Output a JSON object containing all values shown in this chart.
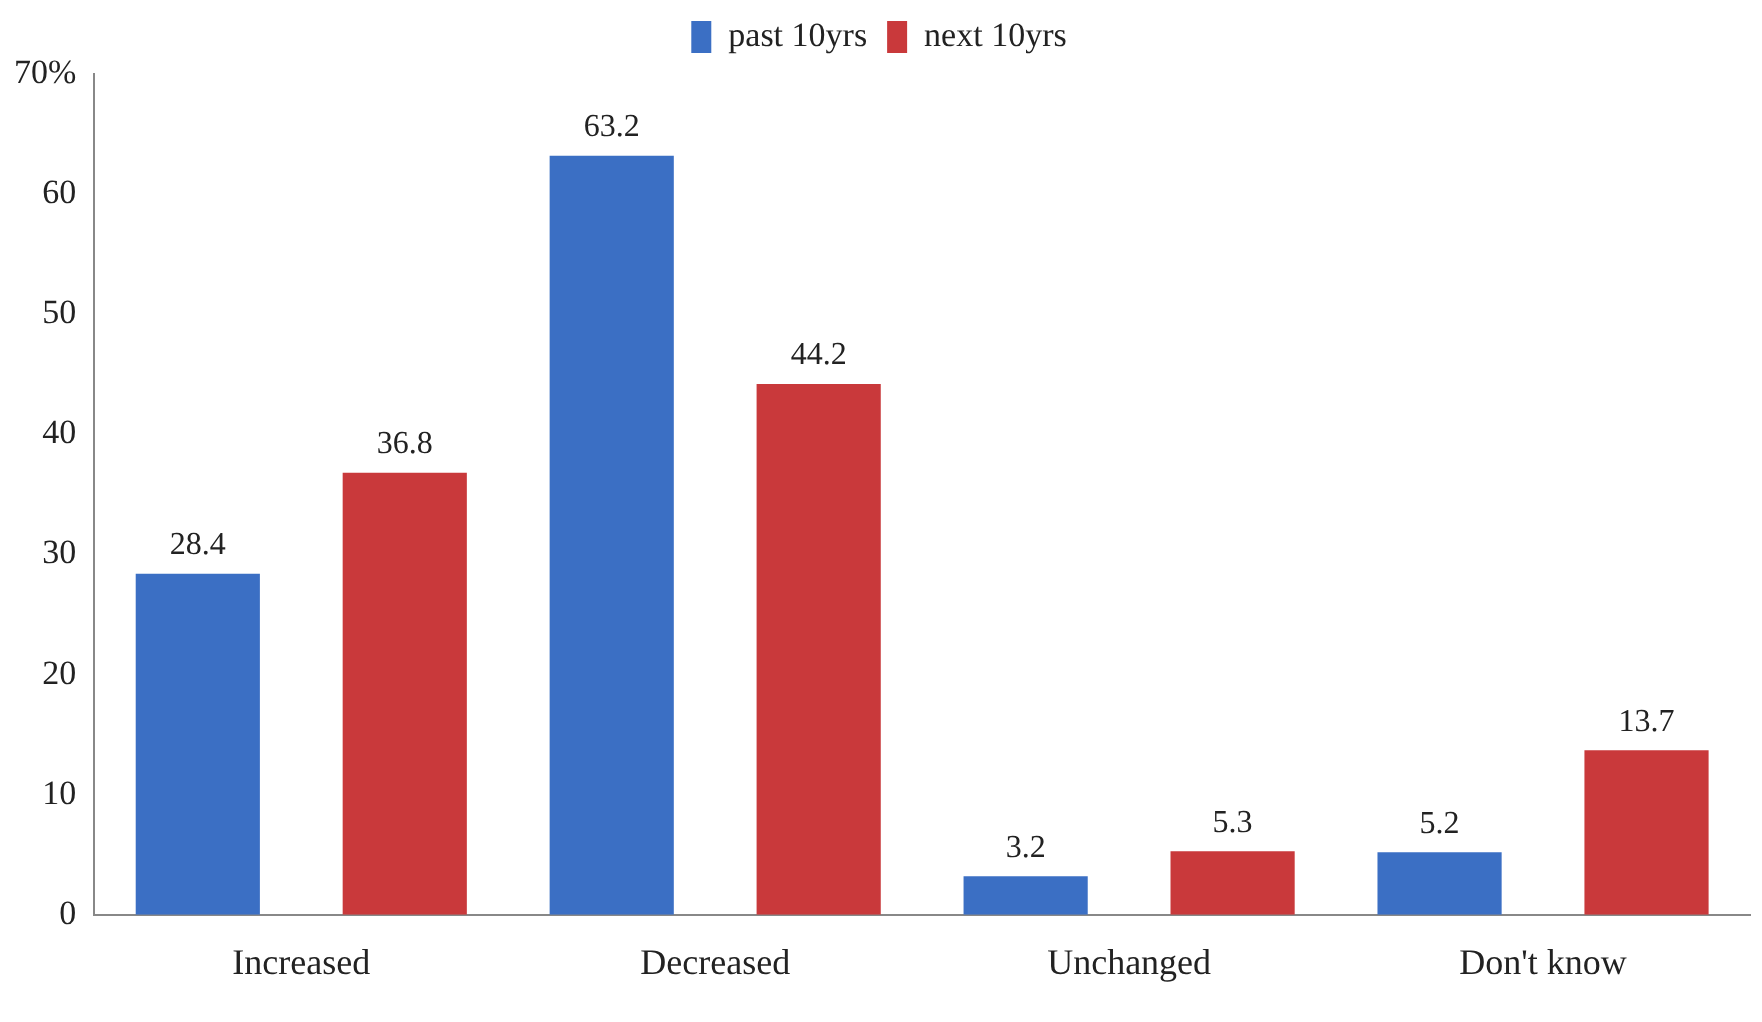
{
  "chart_data": {
    "type": "bar",
    "categories": [
      "Increased",
      "Decreased",
      "Unchanged",
      "Don't know"
    ],
    "series": [
      {
        "name": "past 10yrs",
        "color": "#3b6fc4",
        "values": [
          28.4,
          63.2,
          3.2,
          5.2
        ]
      },
      {
        "name": "next 10yrs",
        "color": "#c9393b",
        "values": [
          36.8,
          44.2,
          5.3,
          13.7
        ]
      }
    ],
    "ylim": [
      0,
      70
    ],
    "yticks": [
      0,
      10,
      20,
      30,
      40,
      50,
      60,
      {
        "value": 70,
        "label": "70%"
      }
    ],
    "grid": false,
    "legend": "top",
    "data_labels": true
  }
}
